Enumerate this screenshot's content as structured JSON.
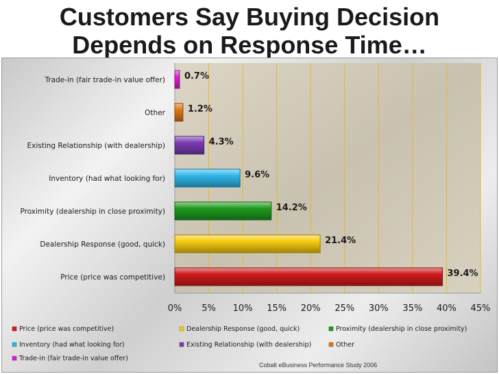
{
  "title": {
    "line1": "Customers Say Buying Decision",
    "line2": "Depends on Response Time…"
  },
  "source": "Cobalt eBusiness Performance Study 2006",
  "chart_data": {
    "type": "bar",
    "orientation": "horizontal",
    "categories": [
      "Trade-in (fair trade-in value offer)",
      "Other",
      "Existing Relationship (with dealership)",
      "Inventory (had what looking for)",
      "Proximity (dealership in close proximity)",
      "Dealership Response (good, quick)",
      "Price (price was competitive)"
    ],
    "values": [
      0.7,
      1.2,
      4.3,
      9.6,
      14.2,
      21.4,
      39.4
    ],
    "value_labels": [
      "0.7%",
      "1.2%",
      "4.3%",
      "9.6%",
      "14.2%",
      "21.4%",
      "39.4%"
    ],
    "colors": [
      "#e020d0",
      "#e07818",
      "#7a3cb4",
      "#30b8ec",
      "#1e9a1e",
      "#f8cc10",
      "#d01c1c"
    ],
    "xlim": [
      0,
      45
    ],
    "xticks": [
      "0%",
      "5%",
      "10%",
      "15%",
      "20%",
      "25%",
      "30%",
      "35%",
      "40%",
      "45%"
    ],
    "grid": true,
    "legend": {
      "placement": "bottom",
      "entries": [
        "Price (price was competitive)",
        "Dealership Response (good, quick)",
        "Proximity (dealership in close proximity)",
        "Inventory (had what looking for)",
        "Existing Relationship (with dealership)",
        "Other",
        "Trade-in (fair trade-in value offer)"
      ],
      "colors": [
        "#d01c1c",
        "#f8cc10",
        "#1e9a1e",
        "#30b8ec",
        "#7a3cb4",
        "#e07818",
        "#e020d0"
      ]
    }
  }
}
